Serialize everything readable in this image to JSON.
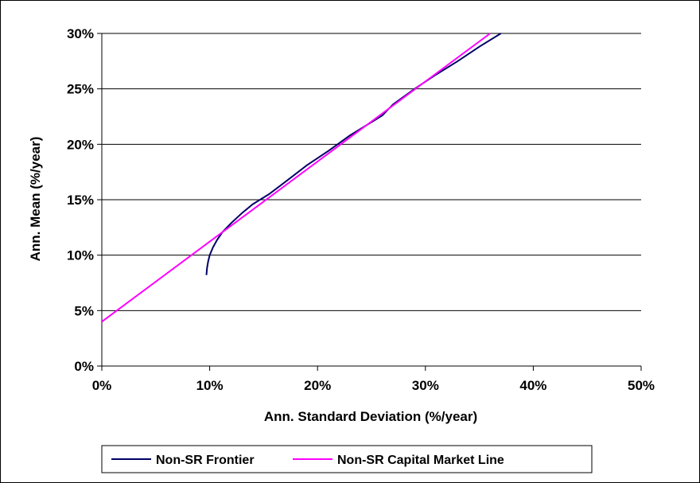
{
  "chart_data": {
    "type": "line",
    "xlabel": "Ann. Standard Deviation (%/year)",
    "ylabel": "Ann. Mean (%/year)",
    "xlim": [
      0,
      50
    ],
    "ylim": [
      0,
      30
    ],
    "x_ticks": [
      0,
      10,
      20,
      30,
      40,
      50
    ],
    "y_ticks": [
      0,
      5,
      10,
      15,
      20,
      25,
      30
    ],
    "x_tick_labels": [
      "0%",
      "10%",
      "20%",
      "30%",
      "40%",
      "50%"
    ],
    "y_tick_labels": [
      "0%",
      "5%",
      "10%",
      "15%",
      "20%",
      "25%",
      "30%"
    ],
    "grid": {
      "horizontal": true,
      "vertical": false
    },
    "legend_position": "bottom",
    "series": [
      {
        "name": "Non-SR Frontier",
        "color": "#000066",
        "points": [
          [
            9.7,
            8.2
          ],
          [
            9.75,
            8.8
          ],
          [
            9.85,
            9.4
          ],
          [
            10.0,
            10.0
          ],
          [
            10.3,
            10.7
          ],
          [
            10.7,
            11.4
          ],
          [
            11.2,
            12.1
          ],
          [
            12.0,
            12.9
          ],
          [
            13.0,
            13.8
          ],
          [
            14.0,
            14.6
          ],
          [
            15.5,
            15.5
          ],
          [
            17.0,
            16.6
          ],
          [
            19.0,
            18.1
          ],
          [
            21.0,
            19.4
          ],
          [
            23.0,
            20.8
          ],
          [
            25.0,
            22.0
          ],
          [
            26.0,
            22.6
          ],
          [
            27.0,
            23.6
          ],
          [
            29.0,
            25.0
          ],
          [
            31.0,
            26.3
          ],
          [
            33.0,
            27.5
          ],
          [
            35.0,
            28.8
          ],
          [
            37.0,
            30.0
          ]
        ]
      },
      {
        "name": "Non-SR Capital Market Line",
        "color": "#ff00ff",
        "points": [
          [
            0,
            4.0
          ],
          [
            36.0,
            30.0
          ]
        ]
      }
    ]
  }
}
